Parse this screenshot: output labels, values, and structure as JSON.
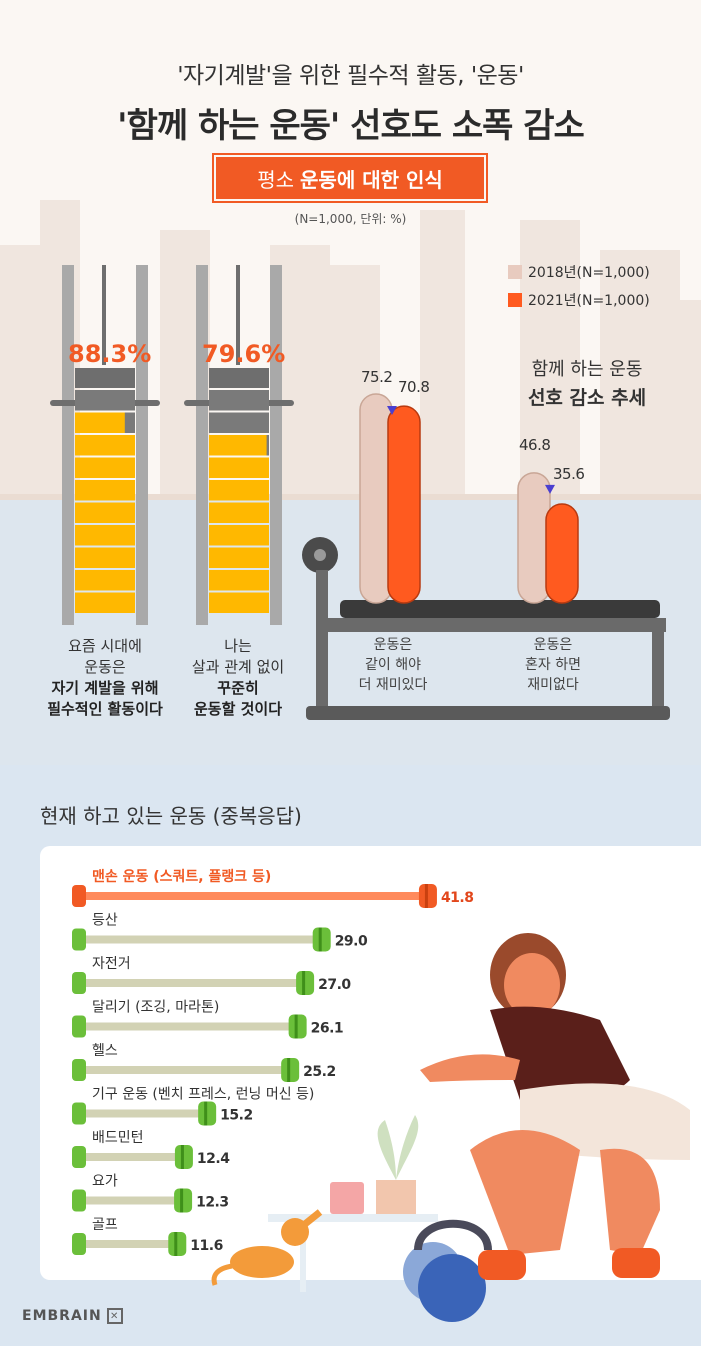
{
  "header": {
    "subtitle": "'자기계발'을 위한 필수적 활동, '운동'",
    "title": "'함께 하는 운동' 선호도 소폭 감소",
    "badge_prefix": "평소",
    "badge_main": "운동에 대한 인식",
    "note": "(N=1,000, 단위: %)"
  },
  "colors": {
    "accent": "#f15a24",
    "y2018": "#e8cbbf",
    "y2021": "#ff5a1f",
    "plate": "#ffb800",
    "bar_track": "#d2d2b4",
    "bar_end": "#6bbf3a"
  },
  "chart_data": [
    {
      "type": "bar",
      "categories": [
        "요즘 시대에 운동은 자기 계발을 위해 필수적인 활동이다",
        "나는 살과 관계 없이 꾸준히 운동할 것이다"
      ],
      "values": [
        88.3,
        79.6
      ],
      "labels": [
        "88.3%",
        "79.6%"
      ]
    },
    {
      "type": "bar",
      "categories": [
        "운동은 같이 해야 더 재미있다",
        "운동은 혼자 하면 재미없다"
      ],
      "series": [
        {
          "name": "2018년(N=1,000)",
          "values": [
            75.2,
            46.8
          ]
        },
        {
          "name": "2021년(N=1,000)",
          "values": [
            70.8,
            35.6
          ]
        }
      ],
      "annotation": [
        "함께 하는 운동",
        "선호 감소 추세"
      ]
    },
    {
      "type": "bar",
      "title": "현재 하고 있는 운동 (중복응답)",
      "categories": [
        "맨손 운동 (스쿼트, 플랭크 등)",
        "등산",
        "자전거",
        "달리기 (조깅, 마라톤)",
        "헬스",
        "기구 운동 (벤치 프레스, 런닝 머신 등)",
        "배드민턴",
        "요가",
        "골프"
      ],
      "values": [
        41.8,
        29.0,
        27.0,
        26.1,
        25.2,
        15.2,
        12.4,
        12.3,
        11.6
      ],
      "labels": [
        "41.8",
        "29.0",
        "27.0",
        "26.1",
        "25.2",
        "15.2",
        "12.4",
        "12.3",
        "11.6"
      ]
    }
  ],
  "rack_labels": [
    {
      "l1": "요즘 시대에",
      "l2": "운동은",
      "l3": "자기 계발을 위해",
      "l4": "필수적인 활동이다"
    },
    {
      "l1": "나는",
      "l2": "살과 관계 없이",
      "l3": "꾸준히",
      "l4": "운동할 것이다"
    }
  ],
  "bench_labels": [
    {
      "l1": "운동은",
      "l2": "같이 해야",
      "l3": "더 재미있다"
    },
    {
      "l1": "운동은",
      "l2": "혼자 하면",
      "l3": "재미없다"
    }
  ],
  "logo": "EMBRAIN"
}
